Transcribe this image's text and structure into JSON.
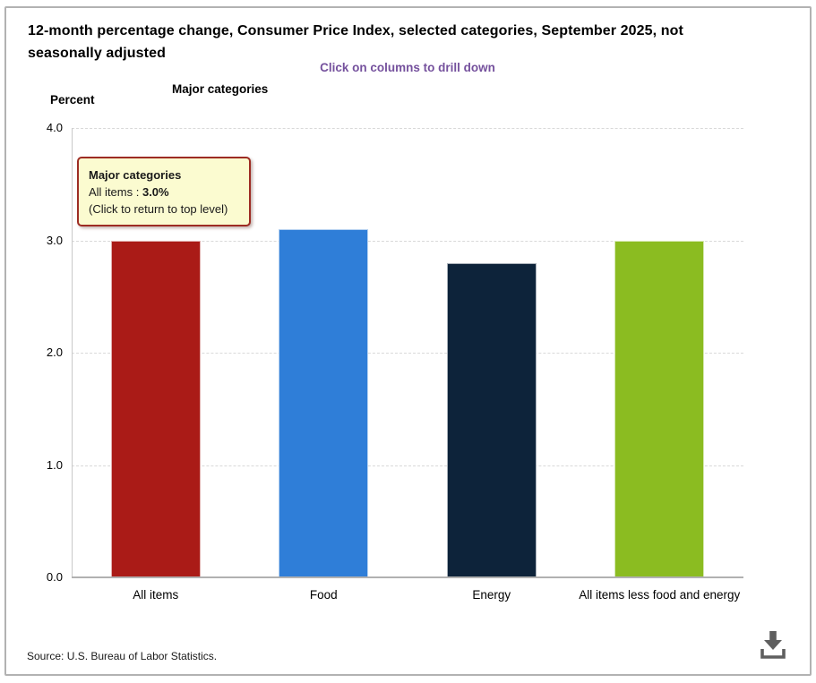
{
  "header": {
    "title": "12-month percentage change, Consumer Price Index, selected categories, September 2025, not seasonally adjusted",
    "subtitle": "Click on columns to drill down",
    "level_label": "Major categories",
    "axis_title": "Percent"
  },
  "tooltip": {
    "heading": "Major categories",
    "series_label": "All items : ",
    "value": "3.0%",
    "note": "(Click to return to top level)"
  },
  "footer": {
    "source": "Source: U.S. Bureau of Labor Statistics."
  },
  "icons": {
    "download": "download-icon"
  },
  "colors": {
    "subtitle_purple": "#75519d",
    "tooltip_bg": "#fbfbd0",
    "tooltip_border": "#9d2c23",
    "gridline": "#d9d9d9",
    "baseline": "#b1b1b1",
    "frame_border": "#b2b2b2",
    "icon_gray": "#5f5f5f"
  },
  "chart_data": {
    "type": "bar",
    "title": "Major categories",
    "categories": [
      "All items",
      "Food",
      "Energy",
      "All items less food and energy"
    ],
    "values": [
      3.0,
      3.1,
      2.8,
      3.0
    ],
    "bar_colors": [
      "#aa1b17",
      "#2f7ed8",
      "#0d233a",
      "#8bbc21"
    ],
    "xlabel": "",
    "ylabel": "Percent",
    "ylim": [
      0,
      4
    ],
    "yticks": [
      0.0,
      1.0,
      2.0,
      3.0,
      4.0
    ],
    "ytick_labels": [
      "0.0",
      "1.0",
      "2.0",
      "3.0",
      "4.0"
    ],
    "grid": "horizontal-dashed",
    "legend": "none"
  }
}
